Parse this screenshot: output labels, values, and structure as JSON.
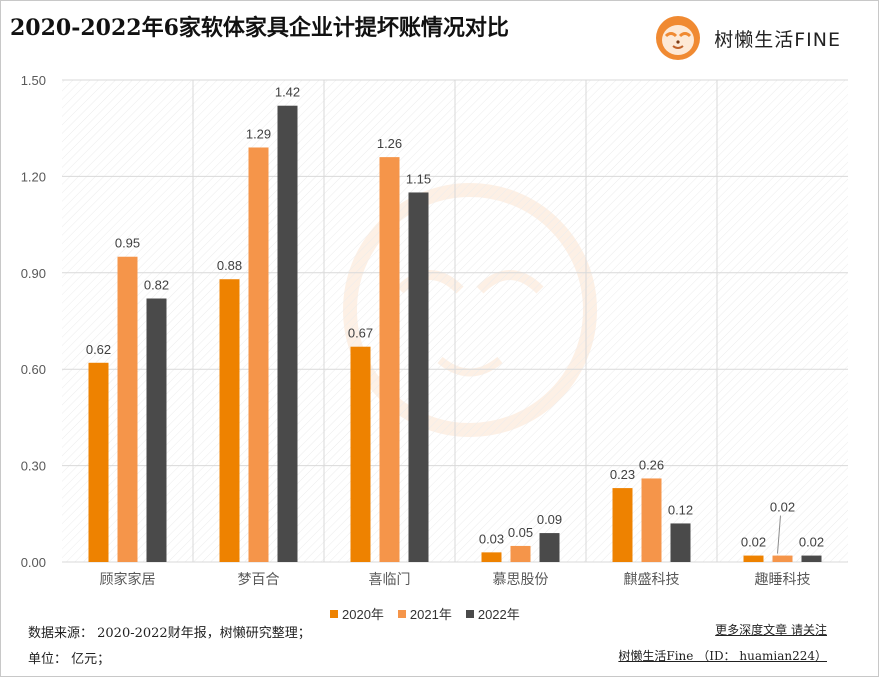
{
  "header": {
    "title": "2020-2022年6家软体家具企业计提坏账情况对比",
    "brand_name": "树懒生活FINE"
  },
  "footer": {
    "source": "数据来源： 2020-2022财年报，树懒研究整理；",
    "unit": "单位： 亿元；",
    "follow": "更多深度文章 请关注",
    "account": "树懒生活Fine （ID： huamian224）"
  },
  "chart_data": {
    "type": "bar",
    "title": "2020-2022年6家软体家具企业计提坏账情况对比",
    "xlabel": "",
    "ylabel": "",
    "ylim": [
      0,
      1.5
    ],
    "yticks": [
      "0.00",
      "0.30",
      "0.60",
      "0.90",
      "1.20",
      "1.50"
    ],
    "ytick_values": [
      0,
      0.3,
      0.6,
      0.9,
      1.2,
      1.5
    ],
    "grid": true,
    "legend_position": "bottom",
    "categories": [
      "顾家家居",
      "梦百合",
      "喜临门",
      "慕思股份",
      "麒盛科技",
      "趣睡科技"
    ],
    "series": [
      {
        "name": "2020年",
        "color": "#ee8200",
        "values": [
          0.62,
          0.88,
          0.67,
          0.03,
          0.23,
          0.02
        ],
        "labels": [
          "0.62",
          "0.88",
          "0.67",
          "0.03",
          "0.23",
          "0.02"
        ]
      },
      {
        "name": "2021年",
        "color": "#f5954a",
        "values": [
          0.95,
          1.29,
          1.26,
          0.05,
          0.26,
          0.02
        ],
        "labels": [
          "0.95",
          "1.29",
          "1.26",
          "0.05",
          "0.26",
          "0.02"
        ]
      },
      {
        "name": "2022年",
        "color": "#4a4a4a",
        "values": [
          0.82,
          1.42,
          1.15,
          0.09,
          0.12,
          0.02
        ],
        "labels": [
          "0.82",
          "1.42",
          "1.15",
          "0.09",
          "0.12",
          "0.02"
        ]
      }
    ]
  },
  "colors": {
    "grid": "#d9d9d9",
    "axis_text": "#595959",
    "label_text": "#404040"
  }
}
